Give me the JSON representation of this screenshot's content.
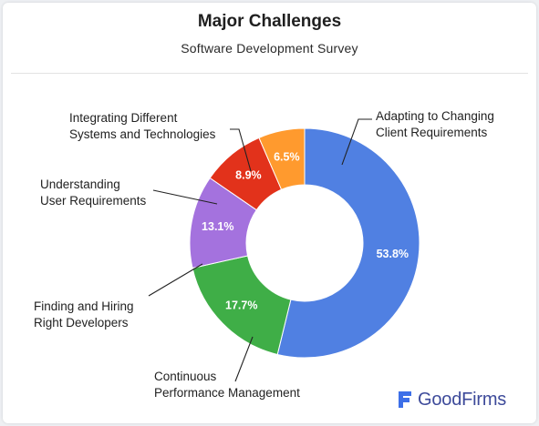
{
  "header": {
    "title": "Major Challenges",
    "subtitle": "Software Development Survey"
  },
  "chart_data": {
    "type": "pie",
    "donut": true,
    "title": "Major Challenges",
    "subtitle": "Software Development Survey",
    "legend": "none (callout labels)",
    "slices": [
      {
        "label": "Adapting to Changing Client Requirements",
        "value": 53.8,
        "display": "53.8%",
        "color": "#5080e2"
      },
      {
        "label": "Continuous Performance Management",
        "value": 17.7,
        "display": "17.7%",
        "color": "#3fae47"
      },
      {
        "label": "Finding and Hiring Right Developers",
        "value": 13.1,
        "display": "13.1%",
        "color": "#a472de"
      },
      {
        "label": "Understanding User Requirements",
        "value": 8.9,
        "display": "8.9%",
        "color": "#e2321b"
      },
      {
        "label": "Integrating Different Systems and Technologies",
        "value": 6.5,
        "display": "6.5%",
        "color": "#ff9a2e"
      }
    ]
  },
  "callouts": {
    "adapting": [
      "Adapting to Changing",
      "Client Requirements"
    ],
    "continuous": [
      "Continuous",
      "Performance Management"
    ],
    "finding": [
      "Finding and Hiring",
      "Right Developers"
    ],
    "understanding": [
      "Understanding",
      "User Requirements"
    ],
    "integrating": [
      "Integrating Different",
      "Systems and Technologies"
    ]
  },
  "brand": {
    "name": "GoodFirms",
    "logo_icon": "goodfirms-logo-icon",
    "color": "#3d4a9a"
  }
}
